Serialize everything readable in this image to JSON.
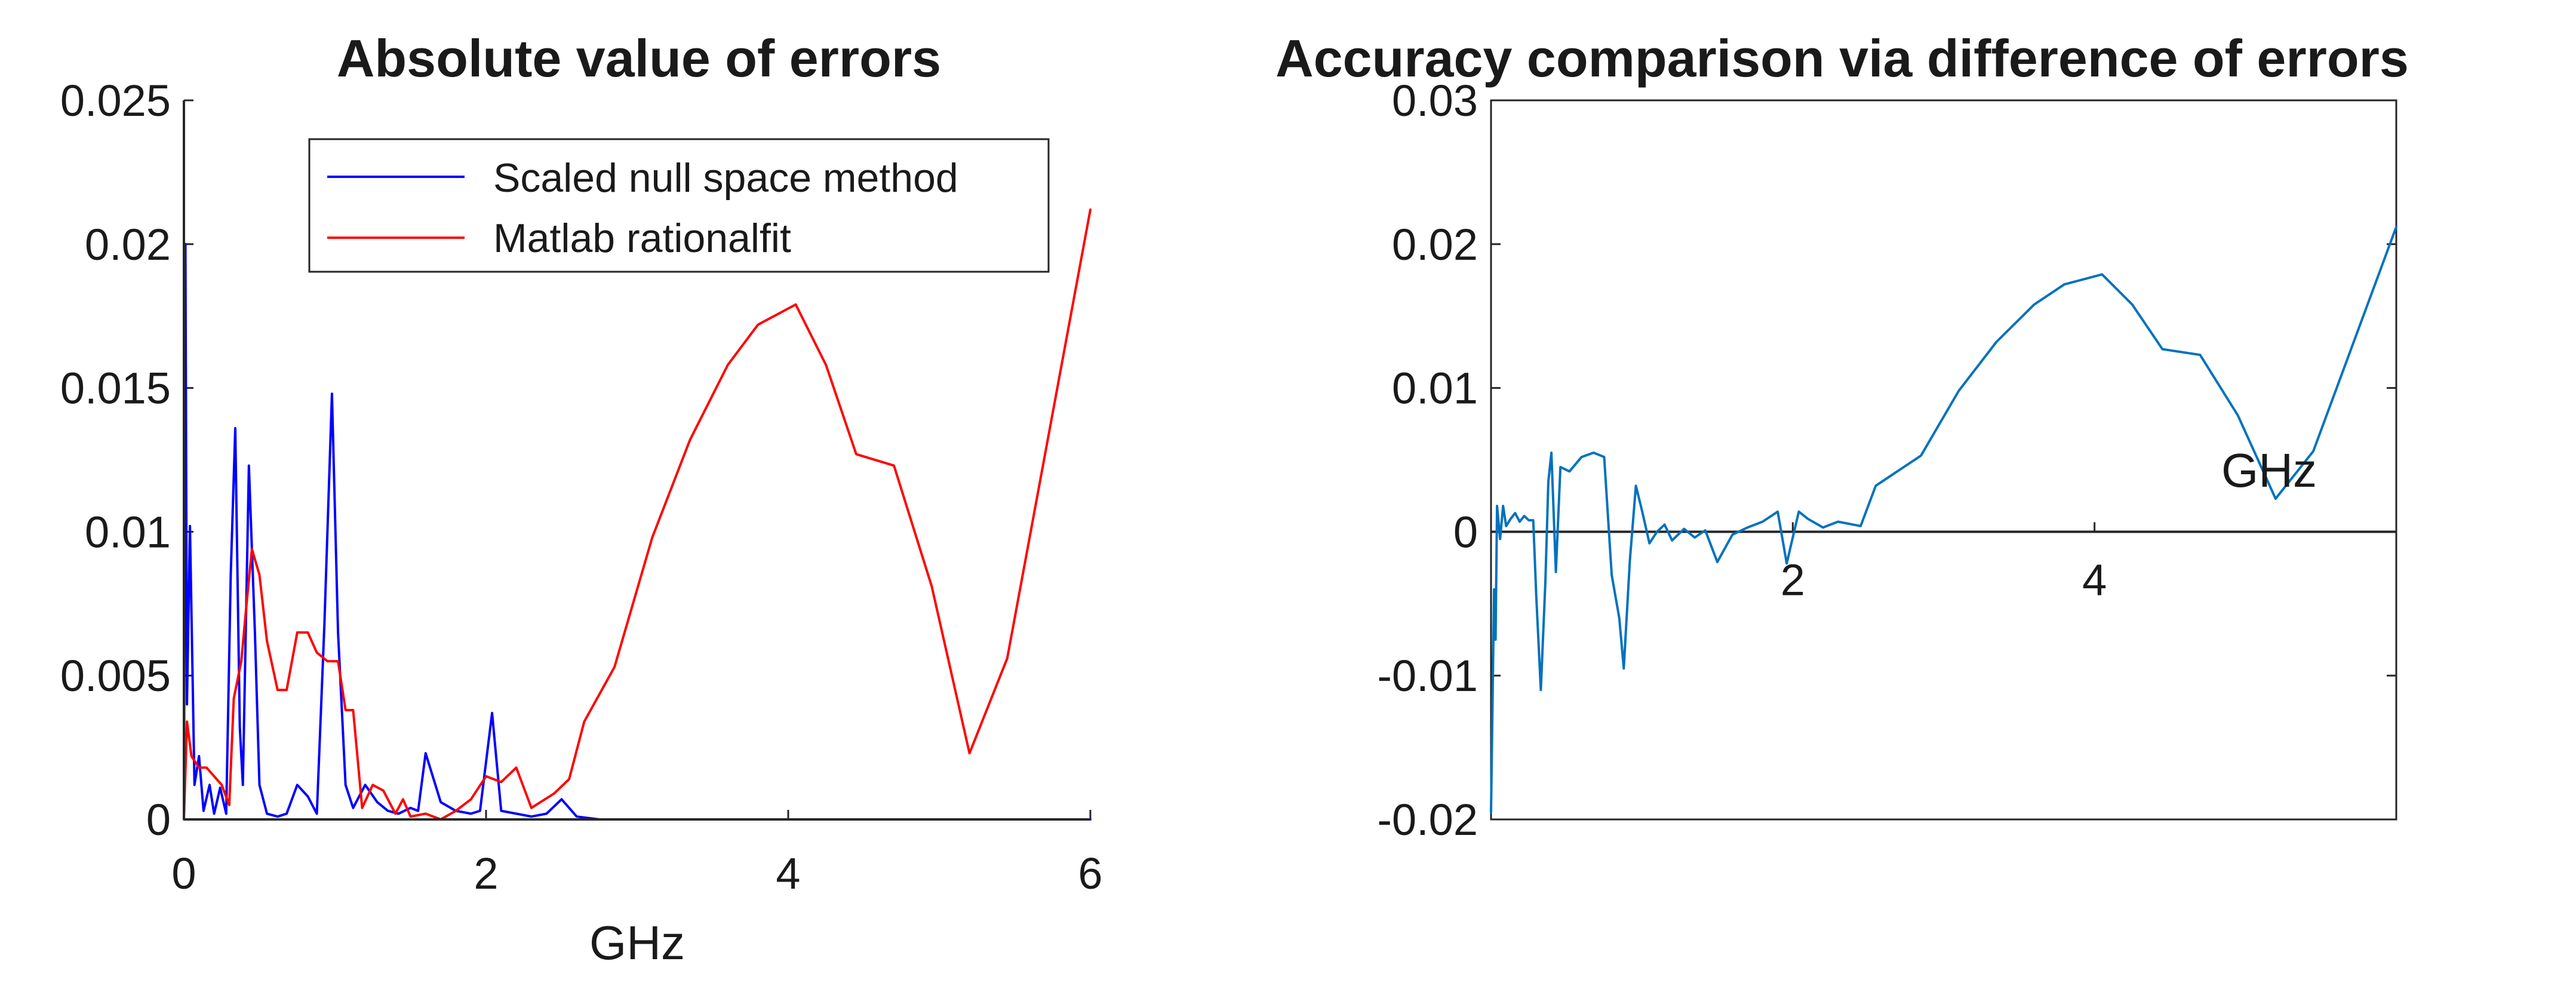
{
  "chart_data": [
    {
      "type": "line",
      "title": "Absolute value of errors",
      "xlabel": "GHz",
      "ylabel": "",
      "xlim": [
        0,
        6
      ],
      "ylim": [
        0,
        0.025
      ],
      "xticks": [
        0,
        2,
        4,
        6
      ],
      "xtick_labels": [
        "0",
        "2",
        "4",
        "6"
      ],
      "yticks": [
        0,
        0.005,
        0.01,
        0.015,
        0.02,
        0.025
      ],
      "ytick_labels": [
        "0",
        "0.005",
        "0.01",
        "0.015",
        "0.02",
        "0.025"
      ],
      "grid": false,
      "legend_position": "top-right",
      "series": [
        {
          "name": "Scaled null space method",
          "color": "#0000ff",
          "points": [
            [
              0.0,
              0.0
            ],
            [
              0.01,
              0.02
            ],
            [
              0.02,
              0.004
            ],
            [
              0.04,
              0.0102
            ],
            [
              0.07,
              0.0012
            ],
            [
              0.1,
              0.0022
            ],
            [
              0.13,
              0.0003
            ],
            [
              0.17,
              0.0012
            ],
            [
              0.2,
              0.0002
            ],
            [
              0.24,
              0.0011
            ],
            [
              0.28,
              0.0002
            ],
            [
              0.31,
              0.0085
            ],
            [
              0.34,
              0.0136
            ],
            [
              0.37,
              0.0032
            ],
            [
              0.39,
              0.0012
            ],
            [
              0.43,
              0.0123
            ],
            [
              0.47,
              0.0065
            ],
            [
              0.5,
              0.0012
            ],
            [
              0.55,
              0.0002
            ],
            [
              0.62,
              0.0001
            ],
            [
              0.68,
              0.0002
            ],
            [
              0.75,
              0.0012
            ],
            [
              0.82,
              0.0008
            ],
            [
              0.88,
              0.0002
            ],
            [
              0.93,
              0.0068
            ],
            [
              0.98,
              0.0148
            ],
            [
              1.02,
              0.0065
            ],
            [
              1.07,
              0.0012
            ],
            [
              1.12,
              0.0004
            ],
            [
              1.2,
              0.0012
            ],
            [
              1.28,
              0.0006
            ],
            [
              1.35,
              0.0003
            ],
            [
              1.42,
              0.0002
            ],
            [
              1.5,
              0.0004
            ],
            [
              1.55,
              0.0003
            ],
            [
              1.6,
              0.0023
            ],
            [
              1.7,
              0.0006
            ],
            [
              1.8,
              0.0003
            ],
            [
              1.9,
              0.0002
            ],
            [
              1.96,
              0.0003
            ],
            [
              2.04,
              0.0037
            ],
            [
              2.1,
              0.0003
            ],
            [
              2.2,
              0.0002
            ],
            [
              2.3,
              0.0001
            ],
            [
              2.4,
              0.0002
            ],
            [
              2.5,
              0.0007
            ],
            [
              2.6,
              0.0001
            ],
            [
              2.75,
              0.0
            ],
            [
              3.0,
              0.0
            ],
            [
              4.0,
              0.0
            ],
            [
              5.0,
              0.0
            ],
            [
              6.0,
              0.0
            ]
          ]
        },
        {
          "name": "Matlab rationalfit",
          "color": "#ff0000",
          "points": [
            [
              0.0,
              0.0
            ],
            [
              0.02,
              0.0034
            ],
            [
              0.05,
              0.0022
            ],
            [
              0.1,
              0.0018
            ],
            [
              0.15,
              0.0018
            ],
            [
              0.2,
              0.0015
            ],
            [
              0.25,
              0.0012
            ],
            [
              0.3,
              0.0005
            ],
            [
              0.33,
              0.0042
            ],
            [
              0.38,
              0.0055
            ],
            [
              0.42,
              0.0078
            ],
            [
              0.45,
              0.0094
            ],
            [
              0.5,
              0.0085
            ],
            [
              0.55,
              0.0062
            ],
            [
              0.62,
              0.0045
            ],
            [
              0.68,
              0.0045
            ],
            [
              0.75,
              0.0065
            ],
            [
              0.82,
              0.0065
            ],
            [
              0.88,
              0.0058
            ],
            [
              0.95,
              0.0055
            ],
            [
              1.02,
              0.0055
            ],
            [
              1.07,
              0.0038
            ],
            [
              1.12,
              0.0038
            ],
            [
              1.18,
              0.0004
            ],
            [
              1.25,
              0.0012
            ],
            [
              1.32,
              0.001
            ],
            [
              1.4,
              0.0002
            ],
            [
              1.45,
              0.0007
            ],
            [
              1.5,
              0.0001
            ],
            [
              1.6,
              0.0002
            ],
            [
              1.7,
              0.0
            ],
            [
              1.8,
              0.0003
            ],
            [
              1.9,
              0.0007
            ],
            [
              2.0,
              0.0015
            ],
            [
              2.1,
              0.0013
            ],
            [
              2.2,
              0.0018
            ],
            [
              2.3,
              0.0004
            ],
            [
              2.45,
              0.0009
            ],
            [
              2.55,
              0.0014
            ],
            [
              2.65,
              0.0034
            ],
            [
              2.85,
              0.0053
            ],
            [
              3.1,
              0.0098
            ],
            [
              3.35,
              0.0132
            ],
            [
              3.6,
              0.0158
            ],
            [
              3.8,
              0.0172
            ],
            [
              4.05,
              0.0179
            ],
            [
              4.25,
              0.0158
            ],
            [
              4.45,
              0.0127
            ],
            [
              4.7,
              0.0123
            ],
            [
              4.95,
              0.0081
            ],
            [
              5.2,
              0.0023
            ],
            [
              5.45,
              0.0056
            ],
            [
              6.0,
              0.0212
            ]
          ]
        }
      ]
    },
    {
      "type": "line",
      "title": "Accuracy comparison via difference of errors",
      "xlabel": "GHz",
      "ylabel": "",
      "xlim": [
        0,
        6
      ],
      "ylim": [
        -0.02,
        0.03
      ],
      "xticks": [
        2,
        4
      ],
      "xtick_labels": [
        "2",
        "4"
      ],
      "yticks": [
        -0.02,
        -0.01,
        0,
        0.01,
        0.02,
        0.03
      ],
      "ytick_labels": [
        "-0.02",
        "-0.01",
        "0",
        "0.01",
        "0.02",
        "0.03"
      ],
      "x_axis_at_y": 0,
      "grid": false,
      "series": [
        {
          "color": "#0072bd",
          "points": [
            [
              0.0,
              -0.0195
            ],
            [
              0.01,
              -0.012
            ],
            [
              0.02,
              -0.004
            ],
            [
              0.03,
              -0.0075
            ],
            [
              0.04,
              0.0018
            ],
            [
              0.06,
              -0.0005
            ],
            [
              0.08,
              0.0018
            ],
            [
              0.1,
              0.0004
            ],
            [
              0.13,
              0.0009
            ],
            [
              0.16,
              0.0013
            ],
            [
              0.19,
              0.0007
            ],
            [
              0.22,
              0.0011
            ],
            [
              0.25,
              0.0008
            ],
            [
              0.28,
              0.0008
            ],
            [
              0.3,
              -0.0045
            ],
            [
              0.33,
              -0.011
            ],
            [
              0.36,
              -0.0035
            ],
            [
              0.38,
              0.0035
            ],
            [
              0.4,
              0.0055
            ],
            [
              0.43,
              -0.0028
            ],
            [
              0.46,
              0.0045
            ],
            [
              0.52,
              0.0042
            ],
            [
              0.6,
              0.0052
            ],
            [
              0.68,
              0.0055
            ],
            [
              0.75,
              0.0052
            ],
            [
              0.8,
              -0.003
            ],
            [
              0.85,
              -0.006
            ],
            [
              0.88,
              -0.0095
            ],
            [
              0.92,
              -0.002
            ],
            [
              0.96,
              0.0032
            ],
            [
              1.0,
              0.0015
            ],
            [
              1.05,
              -0.0008
            ],
            [
              1.1,
              0.0
            ],
            [
              1.15,
              0.0005
            ],
            [
              1.2,
              -0.0006
            ],
            [
              1.28,
              0.0002
            ],
            [
              1.35,
              -0.0004
            ],
            [
              1.42,
              0.0001
            ],
            [
              1.5,
              -0.0021
            ],
            [
              1.6,
              -0.0002
            ],
            [
              1.7,
              0.0003
            ],
            [
              1.8,
              0.0007
            ],
            [
              1.9,
              0.0014
            ],
            [
              1.96,
              -0.0022
            ],
            [
              2.04,
              0.0014
            ],
            [
              2.1,
              0.0009
            ],
            [
              2.2,
              0.0003
            ],
            [
              2.3,
              0.0007
            ],
            [
              2.45,
              0.0004
            ],
            [
              2.55,
              0.0032
            ],
            [
              2.85,
              0.0053
            ],
            [
              3.1,
              0.0098
            ],
            [
              3.35,
              0.0132
            ],
            [
              3.6,
              0.0158
            ],
            [
              3.8,
              0.0172
            ],
            [
              4.05,
              0.0179
            ],
            [
              4.25,
              0.0158
            ],
            [
              4.45,
              0.0127
            ],
            [
              4.7,
              0.0123
            ],
            [
              4.95,
              0.0081
            ],
            [
              5.2,
              0.0023
            ],
            [
              5.45,
              0.0056
            ],
            [
              6.0,
              0.0212
            ]
          ]
        }
      ]
    }
  ]
}
